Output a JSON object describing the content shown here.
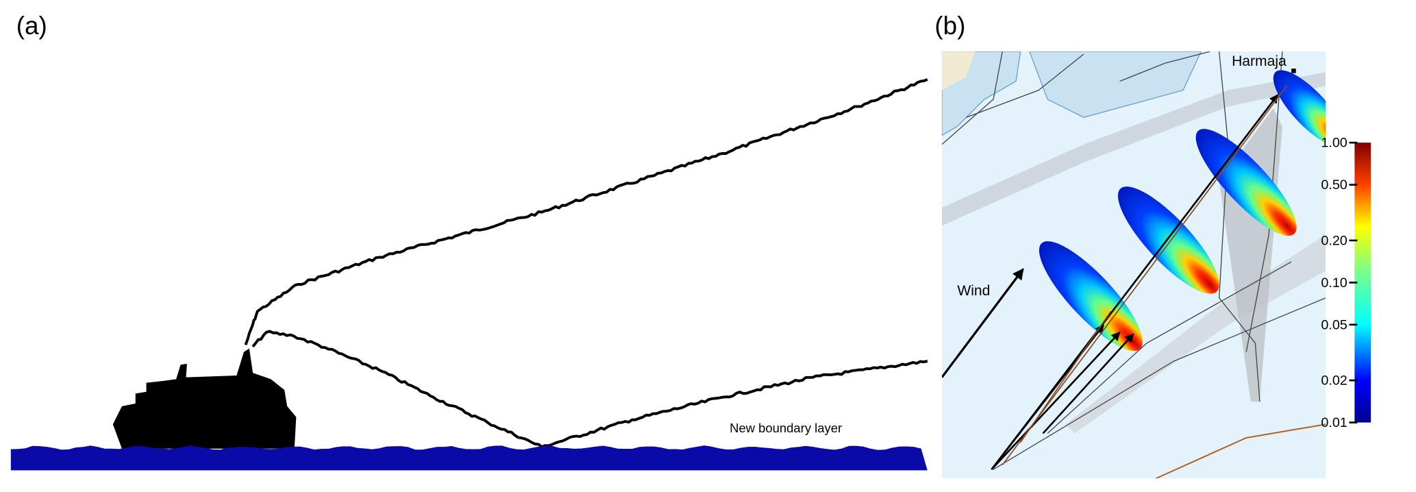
{
  "panel_a": {
    "label": "(a)",
    "annotation": "New boundary layer"
  },
  "panel_b": {
    "label": "(b)",
    "wind_label": "Wind",
    "site_label": "Harmaja",
    "colorbar": {
      "tick_labels": [
        "1.00",
        "0.50",
        "0.20",
        "0.10",
        "0.05",
        "0.02",
        "0.01"
      ]
    }
  }
}
